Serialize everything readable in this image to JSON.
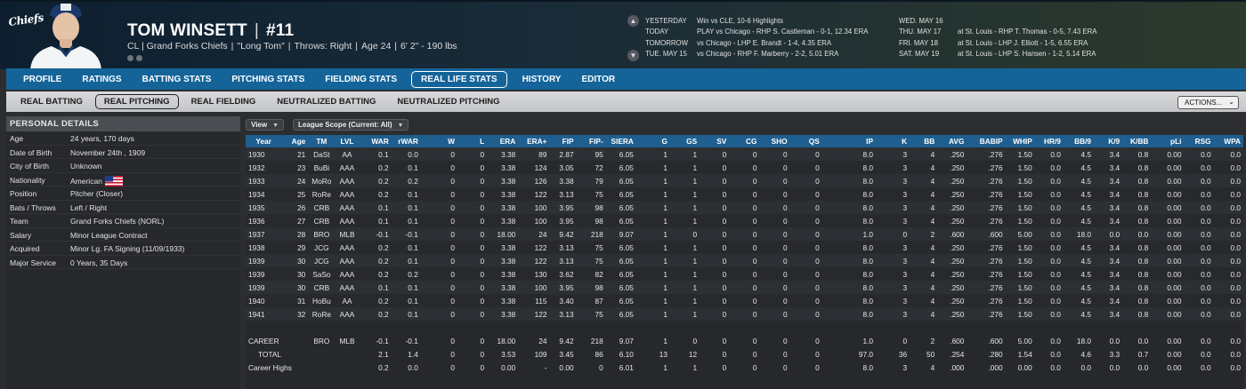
{
  "player": {
    "name": "TOM WINSETT",
    "number": "#11",
    "position_team": "CL | Grand Forks Chiefs",
    "nickname": "\"Long Tom\"",
    "throws": "Throws: Right",
    "age": "Age 24",
    "size": "6' 2\" - 190 lbs",
    "logo_text": "Chiefs"
  },
  "schedule": [
    {
      "label": "YESTERDAY",
      "value": "Win vs CLE, 10-6     Highlights"
    },
    {
      "label": "TODAY",
      "value": "PLAY vs Chicago - RHP S. Castleman - 0-1, 12.34 ERA"
    },
    {
      "label": "TOMORROW",
      "value": "vs Chicago - LHP E. Brandt - 1-4, 4.35 ERA"
    },
    {
      "label": "TUE. MAY 15",
      "value": "vs Chicago - RHP F. Marberry - 2-2, 5.01 ERA"
    },
    {
      "label": "WED. MAY 16",
      "value": ""
    },
    {
      "label": "THU. MAY 17",
      "value": "at St. Louis - RHP T. Thomas - 0-5, 7.43 ERA"
    },
    {
      "label": "FRI. MAY 18",
      "value": "at St. Louis - LHP J. Elliott - 1-5, 6.55 ERA"
    },
    {
      "label": "SAT. MAY 19",
      "value": "at St. Louis - LHP S. Hansen - 1-2, 5.14 ERA"
    }
  ],
  "nav": {
    "tabs": [
      "PROFILE",
      "RATINGS",
      "BATTING STATS",
      "PITCHING STATS",
      "FIELDING STATS",
      "REAL LIFE STATS",
      "HISTORY",
      "EDITOR"
    ],
    "active": "REAL LIFE STATS"
  },
  "subnav": {
    "tabs": [
      "REAL BATTING",
      "REAL PITCHING",
      "REAL FIELDING",
      "NEUTRALIZED BATTING",
      "NEUTRALIZED PITCHING"
    ],
    "active": "REAL PITCHING",
    "actions_label": "ACTIONS..."
  },
  "personal": {
    "header": "PERSONAL DETAILS",
    "rows": [
      {
        "k": "Age",
        "v": "24 years, 170 days"
      },
      {
        "k": "Date of Birth",
        "v": "November 24th , 1909"
      },
      {
        "k": "City of Birth",
        "v": "Unknown"
      },
      {
        "k": "Nationality",
        "v": "American"
      },
      {
        "k": "Position",
        "v": "Pitcher (Closer)"
      },
      {
        "k": "Bats / Throws",
        "v": "Left / Right"
      },
      {
        "k": "Team",
        "v": "Grand Forks Chiefs (NORL)"
      },
      {
        "k": "Salary",
        "v": "Minor League Contract"
      },
      {
        "k": "Acquired",
        "v": "Minor Lg. FA Signing (11/09/1933)"
      },
      {
        "k": "Major Service",
        "v": "0 Years, 35 Days"
      }
    ]
  },
  "filters": {
    "view": "View",
    "scope": "League Scope (Current: All)"
  },
  "stats": {
    "columns": [
      "Year",
      "Age",
      "TM",
      "LVL",
      "WAR",
      "rWAR",
      "W",
      "L",
      "ERA",
      "ERA+",
      "FIP",
      "FIP-",
      "SIERA",
      "G",
      "GS",
      "SV",
      "CG",
      "SHO",
      "QS",
      "IP",
      "K",
      "BB",
      "AVG",
      "BABIP",
      "WHIP",
      "HR/9",
      "BB/9",
      "K/9",
      "K/BB",
      "pLi",
      "RSG",
      "WPA"
    ],
    "rows": [
      [
        "1930",
        "21",
        "DaSt",
        "AA",
        "0.1",
        "0.0",
        "0",
        "0",
        "3.38",
        "89",
        "2.87",
        "95",
        "6.05",
        "1",
        "1",
        "0",
        "0",
        "0",
        "0",
        "8.0",
        "3",
        "4",
        ".250",
        ".276",
        "1.50",
        "0.0",
        "4.5",
        "3.4",
        "0.8",
        "0.00",
        "0.0",
        "0.0"
      ],
      [
        "1932",
        "23",
        "BuBi",
        "AAA",
        "0.2",
        "0.1",
        "0",
        "0",
        "3.38",
        "124",
        "3.05",
        "72",
        "6.05",
        "1",
        "1",
        "0",
        "0",
        "0",
        "0",
        "8.0",
        "3",
        "4",
        ".250",
        ".276",
        "1.50",
        "0.0",
        "4.5",
        "3.4",
        "0.8",
        "0.00",
        "0.0",
        "0.0"
      ],
      [
        "1933",
        "24",
        "MoRo",
        "AAA",
        "0.2",
        "0.2",
        "0",
        "0",
        "3.38",
        "126",
        "3.38",
        "79",
        "6.05",
        "1",
        "1",
        "0",
        "0",
        "0",
        "0",
        "8.0",
        "3",
        "4",
        ".250",
        ".276",
        "1.50",
        "0.0",
        "4.5",
        "3.4",
        "0.8",
        "0.00",
        "0.0",
        "0.0"
      ],
      [
        "1934",
        "25",
        "RoRe",
        "AAA",
        "0.2",
        "0.1",
        "0",
        "0",
        "3.38",
        "122",
        "3.13",
        "75",
        "6.05",
        "1",
        "1",
        "0",
        "0",
        "0",
        "0",
        "8.0",
        "3",
        "4",
        ".250",
        ".276",
        "1.50",
        "0.0",
        "4.5",
        "3.4",
        "0.8",
        "0.00",
        "0.0",
        "0.0"
      ],
      [
        "1935",
        "26",
        "CRB",
        "AAA",
        "0.1",
        "0.1",
        "0",
        "0",
        "3.38",
        "100",
        "3.95",
        "98",
        "6.05",
        "1",
        "1",
        "0",
        "0",
        "0",
        "0",
        "8.0",
        "3",
        "4",
        ".250",
        ".276",
        "1.50",
        "0.0",
        "4.5",
        "3.4",
        "0.8",
        "0.00",
        "0.0",
        "0.0"
      ],
      [
        "1936",
        "27",
        "CRB",
        "AAA",
        "0.1",
        "0.1",
        "0",
        "0",
        "3.38",
        "100",
        "3.95",
        "98",
        "6.05",
        "1",
        "1",
        "0",
        "0",
        "0",
        "0",
        "8.0",
        "3",
        "4",
        ".250",
        ".276",
        "1.50",
        "0.0",
        "4.5",
        "3.4",
        "0.8",
        "0.00",
        "0.0",
        "0.0"
      ],
      [
        "1937",
        "28",
        "BRO",
        "MLB",
        "-0.1",
        "-0.1",
        "0",
        "0",
        "18.00",
        "24",
        "9.42",
        "218",
        "9.07",
        "1",
        "0",
        "0",
        "0",
        "0",
        "0",
        "1.0",
        "0",
        "2",
        ".600",
        ".600",
        "5.00",
        "0.0",
        "18.0",
        "0.0",
        "0.0",
        "0.00",
        "0.0",
        "0.0"
      ],
      [
        "1938",
        "29",
        "JCG",
        "AAA",
        "0.2",
        "0.1",
        "0",
        "0",
        "3.38",
        "122",
        "3.13",
        "75",
        "6.05",
        "1",
        "1",
        "0",
        "0",
        "0",
        "0",
        "8.0",
        "3",
        "4",
        ".250",
        ".276",
        "1.50",
        "0.0",
        "4.5",
        "3.4",
        "0.8",
        "0.00",
        "0.0",
        "0.0"
      ],
      [
        "1939",
        "30",
        "JCG",
        "AAA",
        "0.2",
        "0.1",
        "0",
        "0",
        "3.38",
        "122",
        "3.13",
        "75",
        "6.05",
        "1",
        "1",
        "0",
        "0",
        "0",
        "0",
        "8.0",
        "3",
        "4",
        ".250",
        ".276",
        "1.50",
        "0.0",
        "4.5",
        "3.4",
        "0.8",
        "0.00",
        "0.0",
        "0.0"
      ],
      [
        "1939",
        "30",
        "SaSo",
        "AAA",
        "0.2",
        "0.2",
        "0",
        "0",
        "3.38",
        "130",
        "3.62",
        "82",
        "6.05",
        "1",
        "1",
        "0",
        "0",
        "0",
        "0",
        "8.0",
        "3",
        "4",
        ".250",
        ".276",
        "1.50",
        "0.0",
        "4.5",
        "3.4",
        "0.8",
        "0.00",
        "0.0",
        "0.0"
      ],
      [
        "1939",
        "30",
        "CRB",
        "AAA",
        "0.1",
        "0.1",
        "0",
        "0",
        "3.38",
        "100",
        "3.95",
        "98",
        "6.05",
        "1",
        "1",
        "0",
        "0",
        "0",
        "0",
        "8.0",
        "3",
        "4",
        ".250",
        ".276",
        "1.50",
        "0.0",
        "4.5",
        "3.4",
        "0.8",
        "0.00",
        "0.0",
        "0.0"
      ],
      [
        "1940",
        "31",
        "HoBu",
        "AA",
        "0.2",
        "0.1",
        "0",
        "0",
        "3.38",
        "115",
        "3.40",
        "87",
        "6.05",
        "1",
        "1",
        "0",
        "0",
        "0",
        "0",
        "8.0",
        "3",
        "4",
        ".250",
        ".276",
        "1.50",
        "0.0",
        "4.5",
        "3.4",
        "0.8",
        "0.00",
        "0.0",
        "0.0"
      ],
      [
        "1941",
        "32",
        "RoRe",
        "AAA",
        "0.2",
        "0.1",
        "0",
        "0",
        "3.38",
        "122",
        "3.13",
        "75",
        "6.05",
        "1",
        "1",
        "0",
        "0",
        "0",
        "0",
        "8.0",
        "3",
        "4",
        ".250",
        ".276",
        "1.50",
        "0.0",
        "4.5",
        "3.4",
        "0.8",
        "0.00",
        "0.0",
        "0.0"
      ]
    ],
    "summary": [
      [
        "CAREER",
        "",
        "BRO",
        "MLB",
        "-0.1",
        "-0.1",
        "0",
        "0",
        "18.00",
        "24",
        "9.42",
        "218",
        "9.07",
        "1",
        "0",
        "0",
        "0",
        "0",
        "0",
        "1.0",
        "0",
        "2",
        ".600",
        ".600",
        "5.00",
        "0.0",
        "18.0",
        "0.0",
        "0.0",
        "0.00",
        "0.0",
        "0.0"
      ],
      [
        "TOTAL",
        "",
        "",
        "",
        "2.1",
        "1.4",
        "0",
        "0",
        "3.53",
        "109",
        "3.45",
        "86",
        "6.10",
        "13",
        "12",
        "0",
        "0",
        "0",
        "0",
        "97.0",
        "36",
        "50",
        ".254",
        ".280",
        "1.54",
        "0.0",
        "4.6",
        "3.3",
        "0.7",
        "0.00",
        "0.0",
        "0.0"
      ],
      [
        "Career Highs",
        "",
        "",
        "",
        "0.2",
        "0.0",
        "0",
        "0",
        "0.00",
        "-",
        "0.00",
        "0",
        "6.01",
        "1",
        "1",
        "0",
        "0",
        "0",
        "0",
        "8.0",
        "3",
        "4",
        ".000",
        ".000",
        "0.00",
        "0.0",
        "0.0",
        "0.0",
        "0.0",
        "0.00",
        "0.0",
        "0.0"
      ]
    ]
  }
}
